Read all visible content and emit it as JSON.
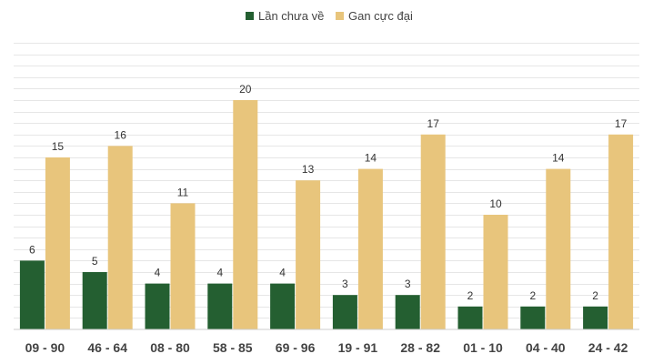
{
  "chart_data": {
    "type": "bar",
    "categories": [
      "09 - 90",
      "46 - 64",
      "08 - 80",
      "58 - 85",
      "69 - 96",
      "19 - 91",
      "28 - 82",
      "01 - 10",
      "04 - 40",
      "24 - 42"
    ],
    "series": [
      {
        "name": "Lần chưa về",
        "color": "#245f31",
        "values": [
          6,
          5,
          4,
          4,
          4,
          3,
          3,
          2,
          2,
          2
        ]
      },
      {
        "name": "Gan cực đại",
        "color": "#e8c57c",
        "values": [
          15,
          16,
          11,
          20,
          13,
          14,
          17,
          10,
          14,
          17
        ]
      }
    ],
    "ylim": [
      0,
      25
    ],
    "grid": true,
    "legend": "top-center",
    "title": "",
    "xlabel": "",
    "ylabel": ""
  }
}
